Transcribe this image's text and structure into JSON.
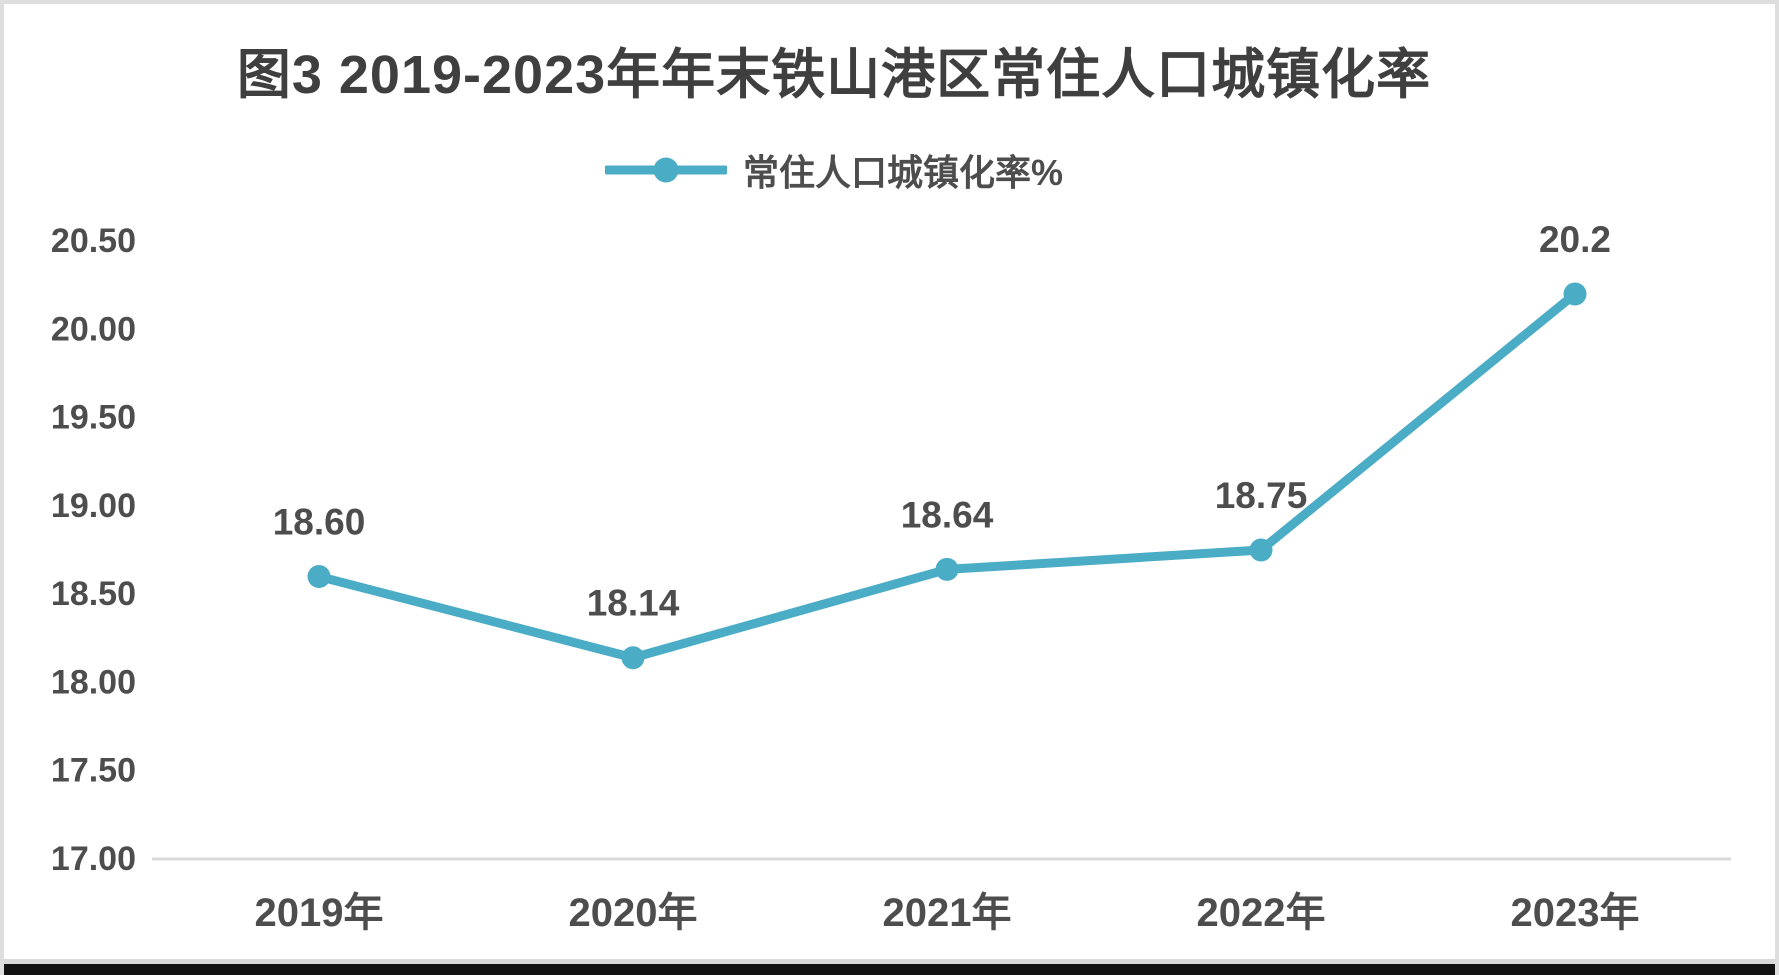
{
  "page": {
    "background_color": "#ffffff",
    "border_color": "#dedede",
    "bottom_bar_color": "#121212"
  },
  "chart_data": {
    "type": "line",
    "title": "图3 2019-2023年年末铁山港区常住人口城镇化率",
    "legend": {
      "position": "top",
      "entries": [
        {
          "label": "常住人口城镇化率%",
          "color": "#4BACC6",
          "marker": "circle-on-line"
        }
      ]
    },
    "categories": [
      "2019年",
      "2020年",
      "2021年",
      "2022年",
      "2023年"
    ],
    "series": [
      {
        "name": "常住人口城镇化率%",
        "values": [
          18.6,
          18.14,
          18.64,
          18.75,
          20.2
        ],
        "data_labels": [
          "18.60",
          "18.14",
          "18.64",
          "18.75",
          "20.2"
        ],
        "color": "#4BACC6"
      }
    ],
    "xlabel": "",
    "ylabel": "",
    "ylim": [
      17.0,
      20.5
    ],
    "y_ticks": [
      {
        "label": "20.50",
        "value": 20.5
      },
      {
        "label": "20.00",
        "value": 20.0
      },
      {
        "label": "19.50",
        "value": 19.5
      },
      {
        "label": "19.00",
        "value": 19.0
      },
      {
        "label": "18.50",
        "value": 18.5
      },
      {
        "label": "18.00",
        "value": 18.0
      },
      {
        "label": "17.50",
        "value": 17.5
      },
      {
        "label": "17.00",
        "value": 17.0
      }
    ],
    "grid": false,
    "axis_line_color": "#d9d9d9",
    "text_color": "#4d4d4d"
  }
}
